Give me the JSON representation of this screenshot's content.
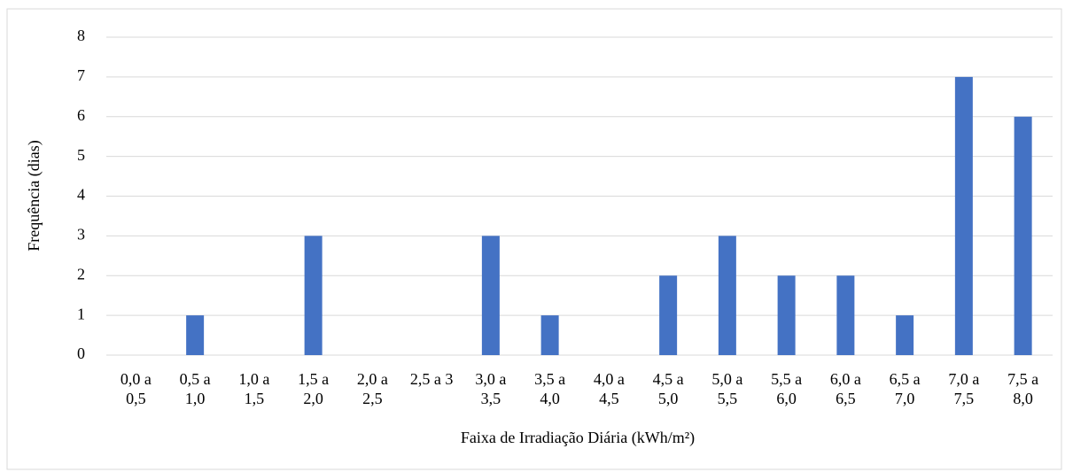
{
  "chart_data": {
    "type": "bar",
    "x_label": "Faixa de Irradiação Diária (kWh/m²)",
    "y_label": "Frequência (dias)",
    "categories": [
      "0,0 a 0,5",
      "0,5 a 1,0",
      "1,0 a 1,5",
      "1,5 a 2,0",
      "2,0 a 2,5",
      "2,5 a 3",
      "3,0 a 3,5",
      "3,5 a 4,0",
      "4,0 a 4,5",
      "4,5 a 5,0",
      "5,0 a 5,5",
      "5,5 a 6,0",
      "6,0 a 6,5",
      "6,5 a 7,0",
      "7,0 a 7,5",
      "7,5 a 8,0"
    ],
    "values": [
      0,
      1,
      0,
      3,
      0,
      0,
      3,
      1,
      0,
      2,
      3,
      2,
      2,
      1,
      7,
      6
    ],
    "color": "#4472c4",
    "ylim": [
      0,
      8
    ],
    "yticks": [
      0,
      1,
      2,
      3,
      4,
      5,
      6,
      7,
      8
    ],
    "grid": true
  }
}
